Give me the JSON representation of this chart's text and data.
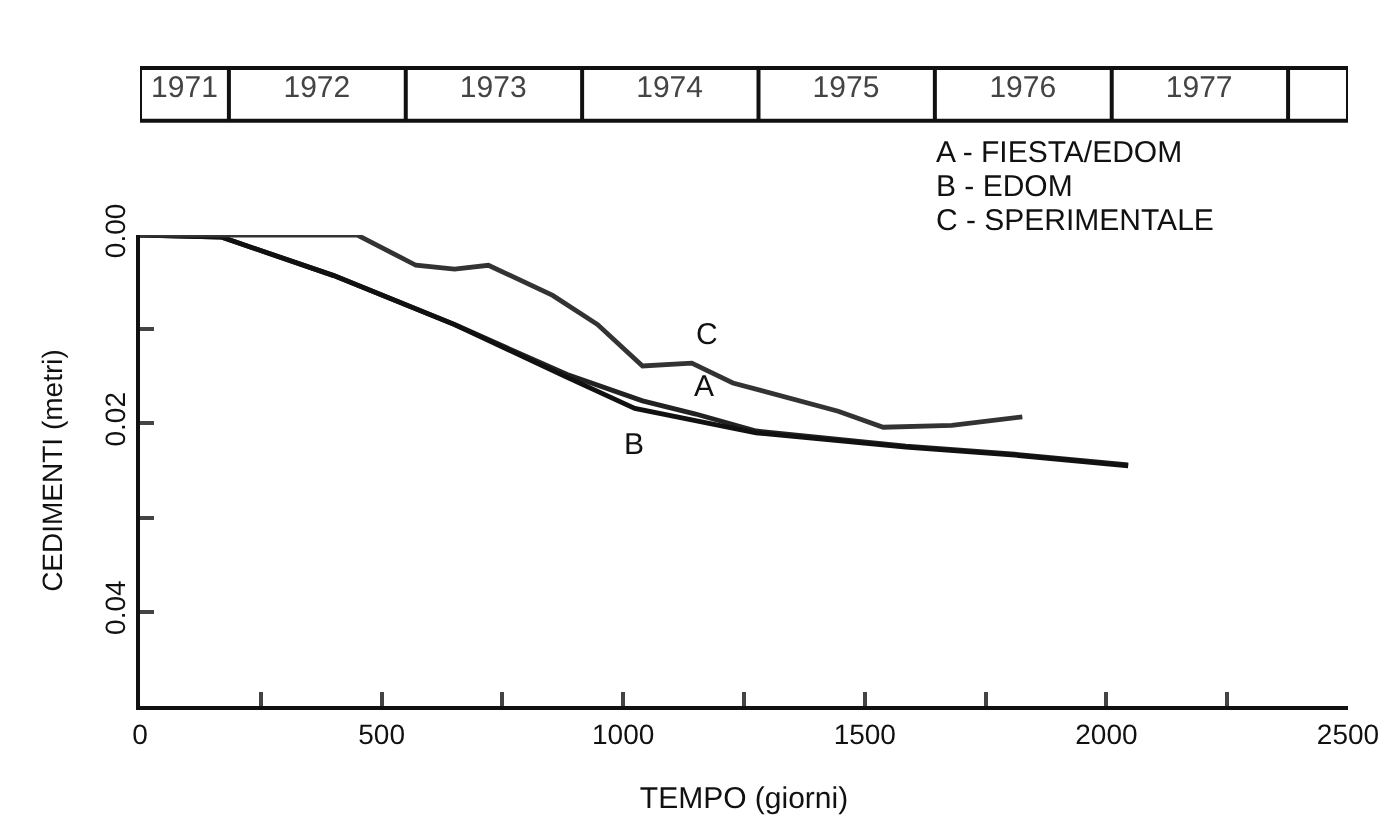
{
  "chart_data": {
    "type": "line",
    "xlabel": "TEMPO (giorni)",
    "ylabel": "CEDIMENTI (metri)",
    "xlim": [
      0,
      2500
    ],
    "xticks": [
      0,
      {
        "value": 250,
        "label": null
      },
      500,
      {
        "value": 750,
        "label": null
      },
      1000,
      {
        "value": 1250,
        "label": null
      },
      1500,
      {
        "value": 1750,
        "label": null
      },
      2000,
      {
        "value": 2250,
        "label": null
      },
      2500
    ],
    "ylim": [
      0.05,
      0
    ],
    "yticks": [
      {
        "value": 0,
        "label": "0.00"
      },
      {
        "value": 0.01,
        "label": null
      },
      {
        "value": 0.02,
        "label": "0.02"
      },
      {
        "value": 0.03,
        "label": null
      },
      {
        "value": 0.04,
        "label": "0.04"
      },
      {
        "value": 0.05,
        "label": null
      }
    ],
    "x2lim": [
      "1971-07-01",
      "1978-05-05"
    ],
    "x2ticks": [
      {
        "value": "1971-10-01",
        "label": "1971"
      },
      {
        "value": "1972-07-01",
        "label": "1972"
      },
      {
        "value": "1973-07-01",
        "label": "1973"
      },
      {
        "value": "1974-07-01",
        "label": "1974"
      },
      {
        "value": "1975-07-01",
        "label": "1975"
      },
      {
        "value": "1976-07-01",
        "label": "1976"
      },
      {
        "value": "1977-07-01",
        "label": "1977"
      }
    ],
    "grid": false,
    "legend": false,
    "marker": "none",
    "line_style": "solid",
    "series": [
      {
        "name": "A",
        "color": "#222222",
        "x": [
          0,
          168,
          401,
          651,
          884,
          1040,
          1150,
          1275,
          1585,
          1818,
          2045
        ],
        "values": [
          0,
          0.0002,
          0.0043,
          0.0095,
          0.0148,
          0.0176,
          0.019,
          0.0208,
          0.0224,
          0.0233,
          0.0244
        ]
      },
      {
        "name": "B",
        "color": "#111111",
        "x": [
          0,
          168,
          401,
          651,
          884,
          1024,
          1275,
          1585,
          1818,
          2045
        ],
        "values": [
          0,
          0.0002,
          0.0043,
          0.0095,
          0.0151,
          0.0184,
          0.021,
          0.0225,
          0.0234,
          0.0245
        ]
      },
      {
        "name": "C",
        "color": "#333333",
        "x": [
          0,
          450,
          571,
          651,
          721,
          854,
          947,
          1040,
          1142,
          1227,
          1445,
          1538,
          1680,
          1826
        ],
        "values": [
          0,
          0,
          0.0032,
          0.0036,
          0.0032,
          0.0064,
          0.0095,
          0.0139,
          0.0136,
          0.0157,
          0.0187,
          0.0204,
          0.0202,
          0.0193
        ]
      }
    ],
    "annotations": [
      "A - FIESTA/EDOM",
      "B - EDOM",
      "C - SPERIMENTALE"
    ]
  }
}
